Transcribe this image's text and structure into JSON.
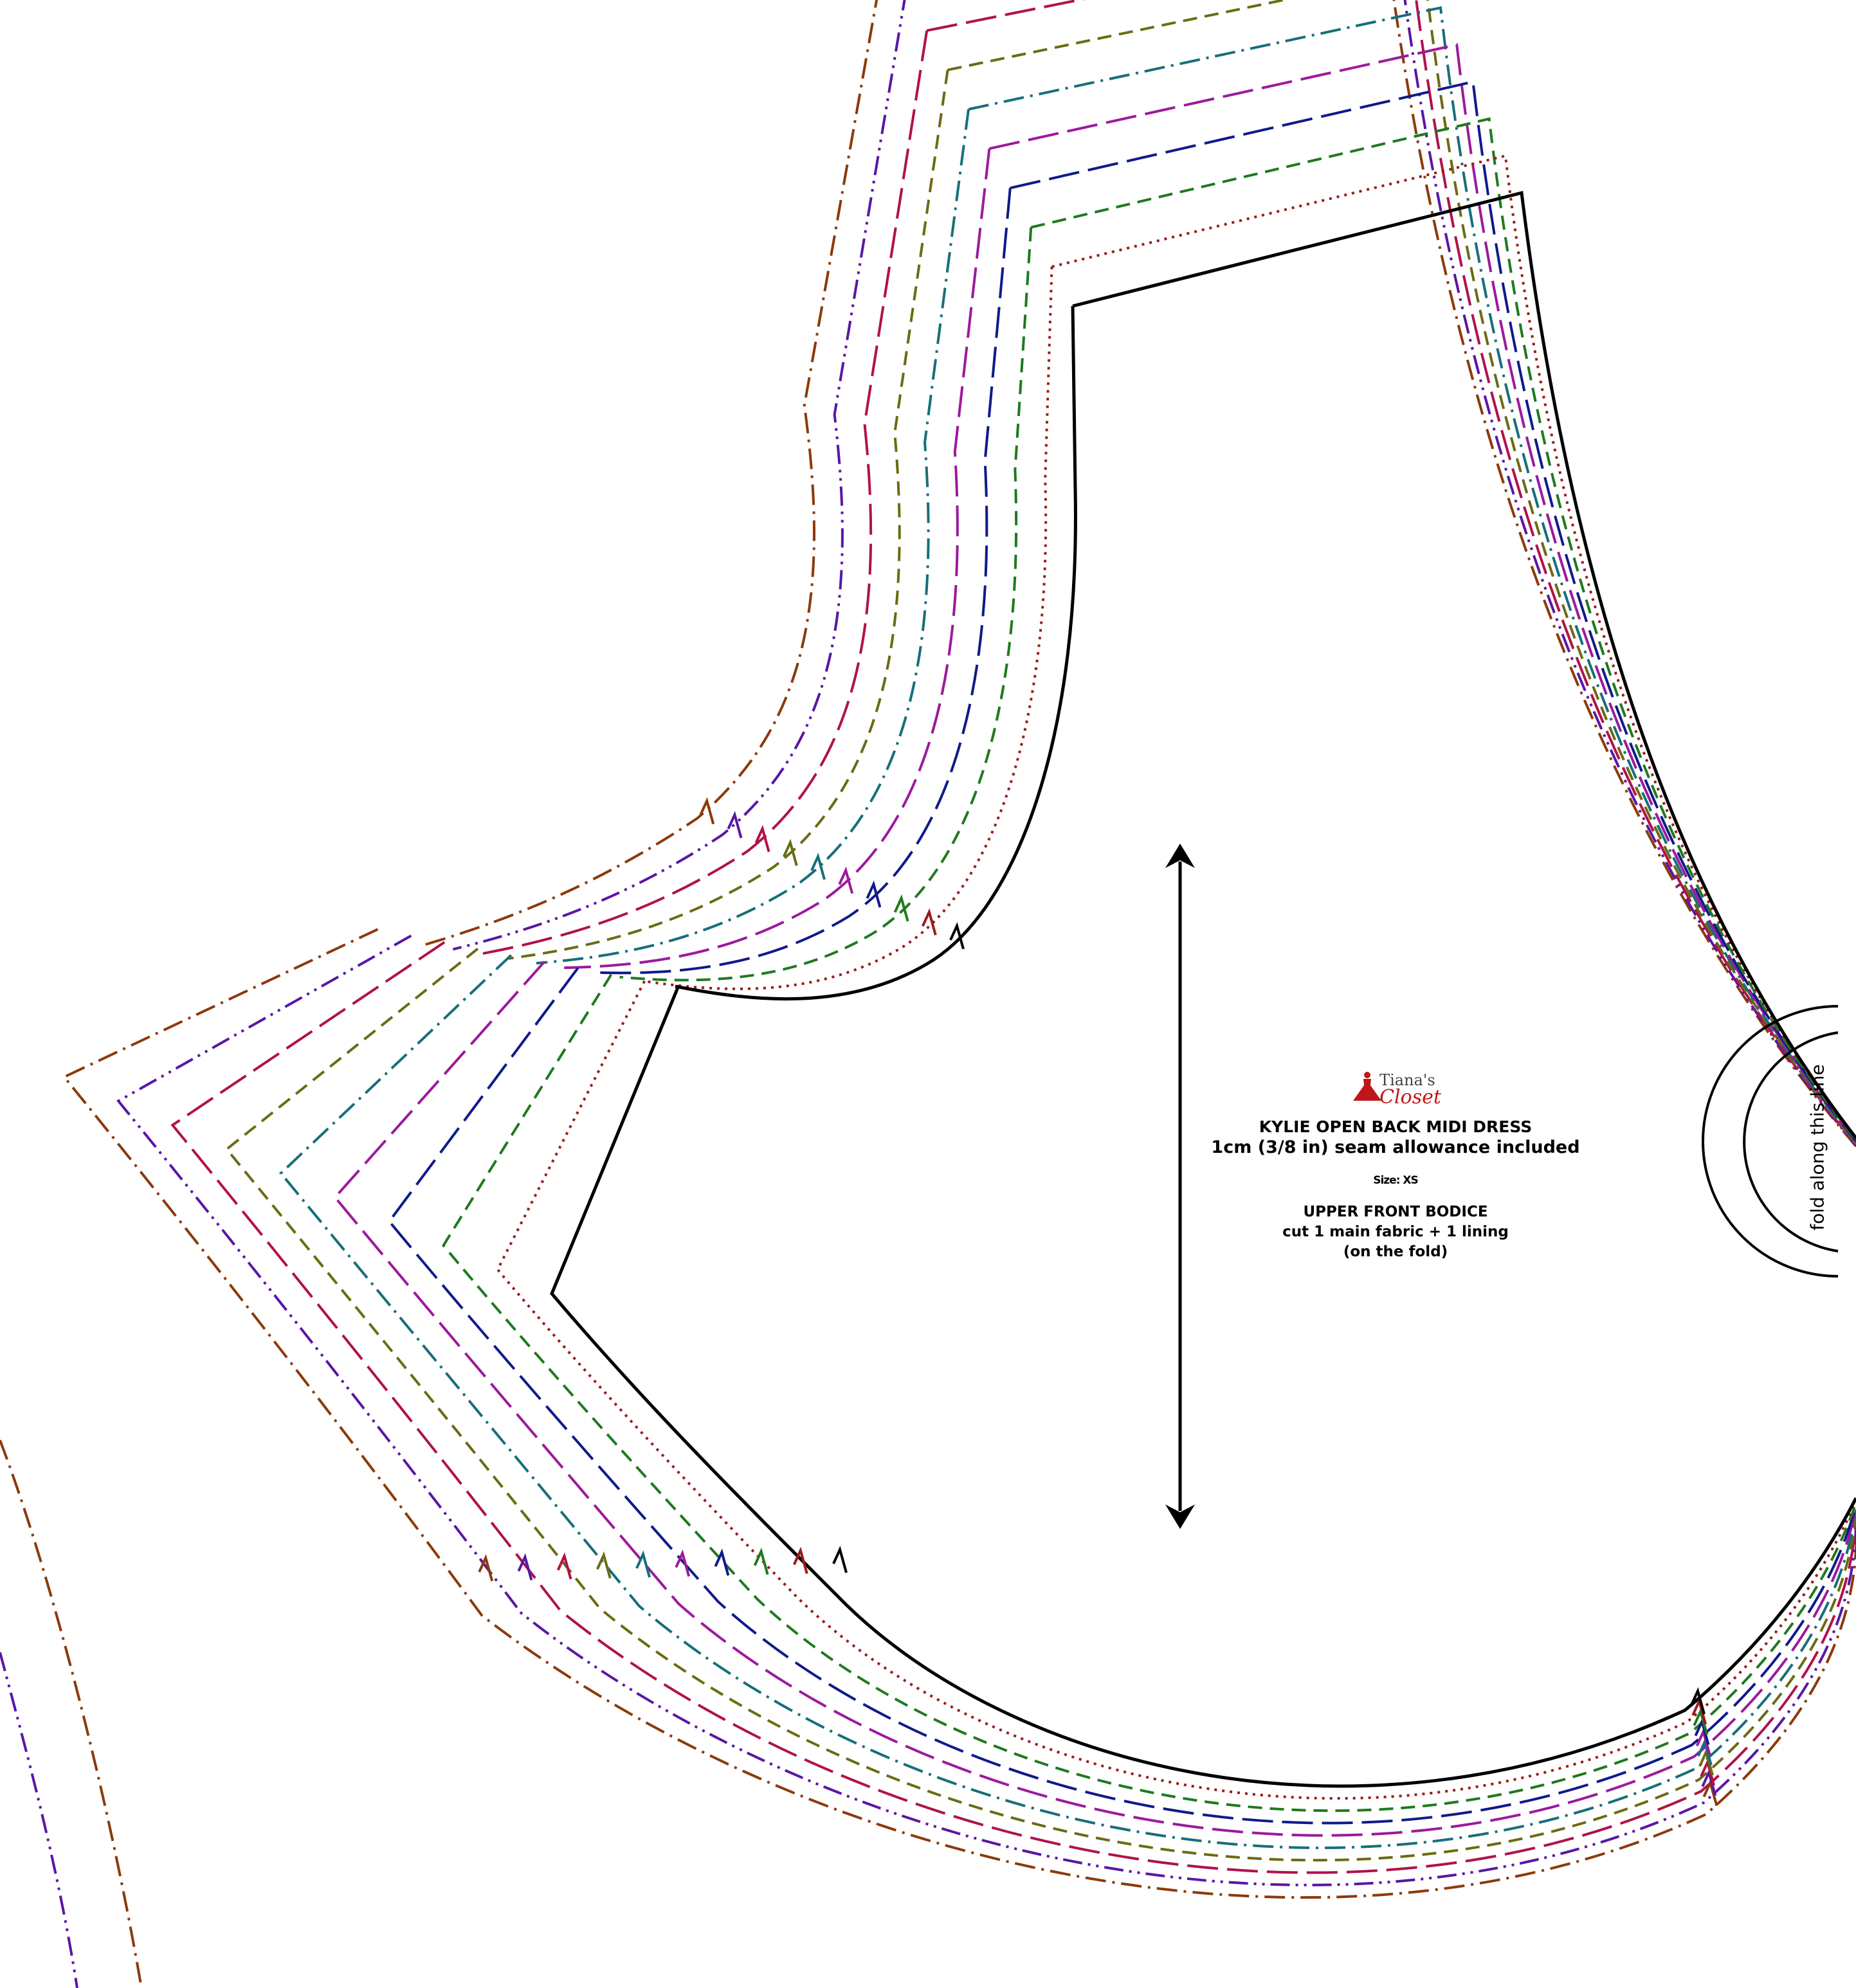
{
  "brand": {
    "logo_top": "Tiana's",
    "logo_bottom": "Closet",
    "logo_color": "#c0161b"
  },
  "pattern": {
    "title": "KYLIE OPEN BACK MIDI DRESS",
    "seam_allowance": "1cm (3/8 in) seam allowance included",
    "size_label": "Size: XS",
    "piece_name": "UPPER FRONT BODICE",
    "cut_instruction": "cut 1 main fabric + 1 lining",
    "fold_note": "(on the fold)"
  },
  "fold": {
    "label": "fold along this line"
  },
  "grainline": {
    "icon": "double-arrow-grainline-icon"
  },
  "size_lines": [
    {
      "color": "#000000",
      "style": "solid"
    },
    {
      "color": "#9b1b1b",
      "style": "dotted"
    },
    {
      "color": "#1e7a1e",
      "style": "dashed"
    },
    {
      "color": "#0f1a8a",
      "style": "long-dash"
    },
    {
      "color": "#9c1a9c",
      "style": "long-dash"
    },
    {
      "color": "#166f7a",
      "style": "dash-dot"
    },
    {
      "color": "#6b6b12",
      "style": "dashed"
    },
    {
      "color": "#b0124a",
      "style": "long-dash"
    },
    {
      "color": "#5a16a6",
      "style": "dash-dot-dot"
    },
    {
      "color": "#8b3a0a",
      "style": "dash-dot"
    }
  ]
}
